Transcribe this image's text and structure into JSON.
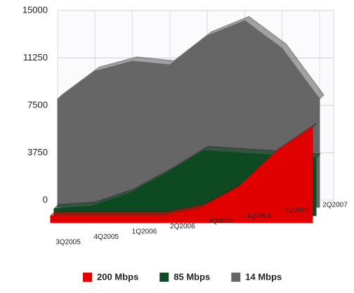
{
  "chart_data": {
    "type": "area3d",
    "categories": [
      "3Q2005",
      "4Q2005",
      "1Q2006",
      "2Q2006",
      "3Q2006",
      "4Q2006",
      "1Q2007",
      "2Q2007"
    ],
    "series": [
      {
        "name": "200 Mbps",
        "color": "#e00000",
        "values": [
          0,
          0,
          0,
          0,
          600,
          2200,
          5000,
          7000
        ]
      },
      {
        "name": "85 Mbps",
        "color": "#0d4a22",
        "values": [
          0,
          200,
          1200,
          2800,
          4600,
          4400,
          4200,
          4000
        ]
      },
      {
        "name": "14 Mbps",
        "color": "#666666",
        "values": [
          8000,
          10200,
          11000,
          10700,
          13000,
          14200,
          12000,
          8000
        ]
      }
    ],
    "ylim": [
      0,
      15000
    ],
    "yticks": [
      0,
      3750,
      7500,
      11250,
      15000
    ],
    "grid": true
  }
}
